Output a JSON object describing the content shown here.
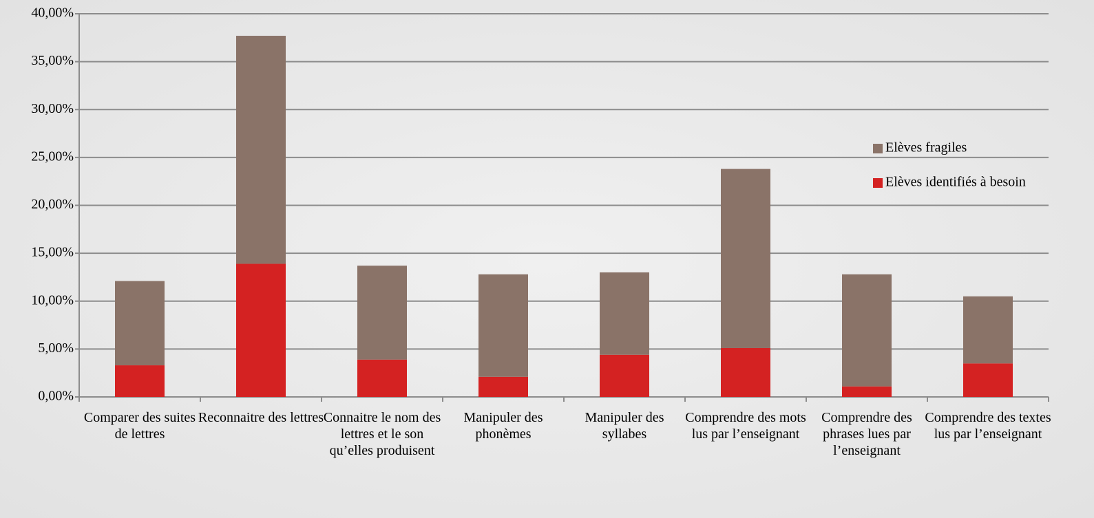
{
  "chart_data": {
    "type": "stacked_bar",
    "categories": [
      "Comparer des suites de lettres",
      "Reconnaitre des lettres",
      "Connaitre le nom des lettres et le son qu’elles produisent",
      "Manipuler des phonèmes",
      "Manipuler des syllabes",
      "Comprendre des mots lus par l’enseignant",
      "Comprendre des phrases lues par l’enseignant",
      "Comprendre des textes lus par l’enseignant"
    ],
    "series": [
      {
        "name": "Elèves identifiés à besoin",
        "color": "#d42222",
        "values": [
          3.3,
          13.9,
          3.9,
          2.1,
          4.4,
          5.1,
          1.1,
          3.5
        ]
      },
      {
        "name": "Elèves fragiles",
        "color": "#8a7368",
        "values": [
          8.8,
          23.8,
          9.8,
          10.7,
          8.6,
          18.7,
          11.7,
          7.0
        ]
      }
    ],
    "ylim": [
      0,
      40
    ],
    "yticks": [
      {
        "value": 0,
        "label": "0,00%"
      },
      {
        "value": 5,
        "label": "5,00%"
      },
      {
        "value": 10,
        "label": "10,00%"
      },
      {
        "value": 15,
        "label": "15,00%"
      },
      {
        "value": 20,
        "label": "20,00%"
      },
      {
        "value": 25,
        "label": "25,00%"
      },
      {
        "value": 30,
        "label": "30,00%"
      },
      {
        "value": 35,
        "label": "35,00%"
      },
      {
        "value": 40,
        "label": "40,00%"
      }
    ],
    "grid": true,
    "legend": "right"
  }
}
